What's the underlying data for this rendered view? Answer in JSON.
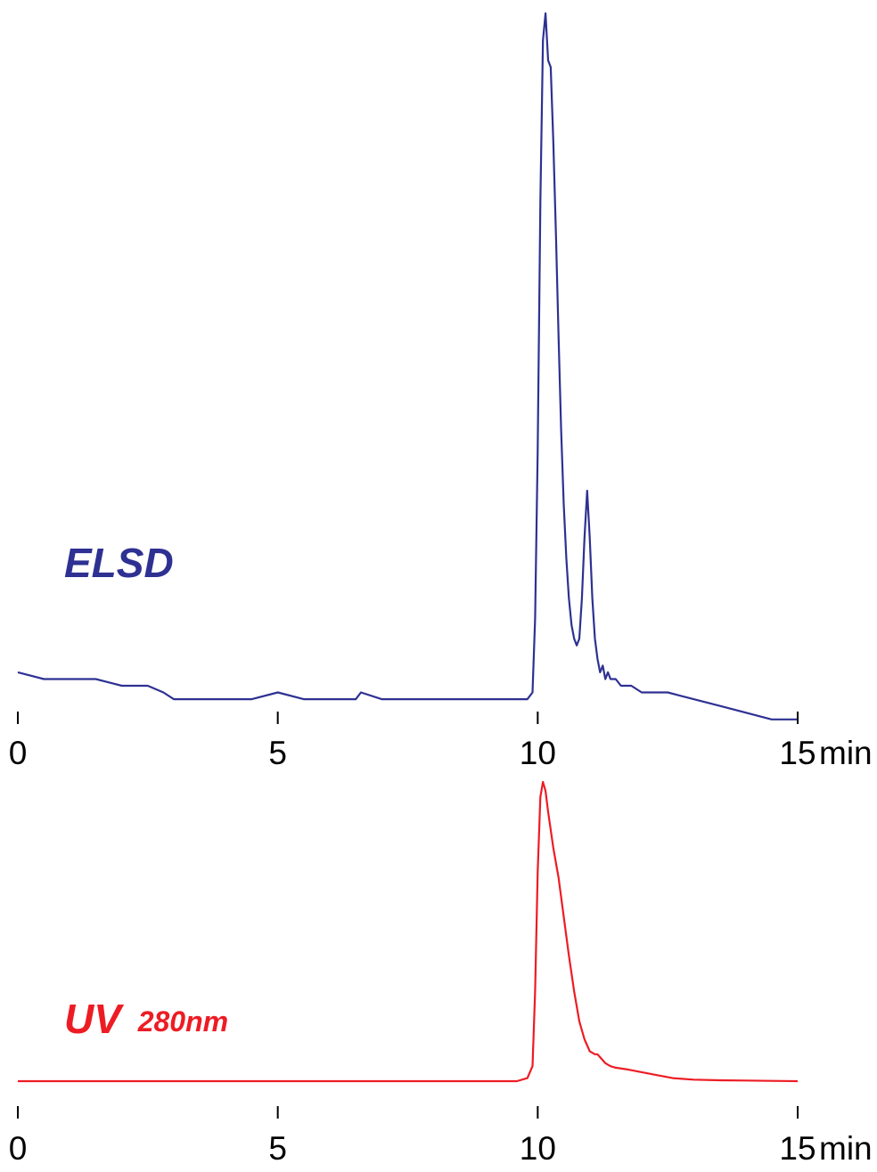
{
  "chart_data": [
    {
      "type": "line",
      "detector_label": "ELSD",
      "color": "#2e3192",
      "x_unit": "min",
      "xlim": [
        0,
        15
      ],
      "x_ticks": [
        "0",
        "5",
        "10",
        "15"
      ],
      "grid": false,
      "series": [
        {
          "x": [
            0,
            0.5,
            1,
            1.5,
            2,
            2.5,
            2.8,
            3,
            3.5,
            4,
            4.5,
            5,
            5.5,
            6,
            6.5,
            6.6,
            7,
            7.5,
            8,
            8.5,
            9,
            9.5,
            9.8,
            9.9,
            9.95,
            10.0,
            10.05,
            10.1,
            10.15,
            10.2,
            10.25,
            10.3,
            10.35,
            10.4,
            10.45,
            10.5,
            10.55,
            10.6,
            10.65,
            10.7,
            10.75,
            10.8,
            10.85,
            10.9,
            10.95,
            11.0,
            11.05,
            11.1,
            11.15,
            11.2,
            11.25,
            11.3,
            11.35,
            11.4,
            11.5,
            11.6,
            11.8,
            12,
            12.5,
            13,
            13.5,
            14,
            14.5,
            15
          ],
          "y": [
            0.02,
            0.01,
            0.01,
            0.01,
            0.0,
            0.0,
            -0.01,
            -0.02,
            -0.02,
            -0.02,
            -0.02,
            -0.01,
            -0.02,
            -0.02,
            -0.02,
            -0.01,
            -0.02,
            -0.02,
            -0.02,
            -0.02,
            -0.02,
            -0.02,
            -0.02,
            -0.01,
            0.1,
            0.35,
            0.72,
            0.96,
            1.0,
            0.93,
            0.92,
            0.81,
            0.67,
            0.52,
            0.38,
            0.27,
            0.19,
            0.13,
            0.09,
            0.07,
            0.06,
            0.07,
            0.13,
            0.22,
            0.29,
            0.22,
            0.13,
            0.07,
            0.04,
            0.02,
            0.03,
            0.01,
            0.02,
            0.01,
            0.01,
            0.0,
            0.0,
            -0.01,
            -0.01,
            -0.02,
            -0.03,
            -0.04,
            -0.05,
            -0.05
          ]
        }
      ]
    },
    {
      "type": "line",
      "detector_label": "UV",
      "detector_sublabel": "280nm",
      "color": "#ed1c24",
      "x_unit": "min",
      "xlim": [
        0,
        15
      ],
      "x_ticks": [
        "0",
        "5",
        "10",
        "15"
      ],
      "grid": false,
      "series": [
        {
          "x": [
            0,
            1,
            2,
            3,
            4,
            5,
            6,
            7,
            8,
            9,
            9.6,
            9.8,
            9.9,
            9.95,
            10.0,
            10.05,
            10.1,
            10.15,
            10.2,
            10.3,
            10.4,
            10.5,
            10.6,
            10.7,
            10.8,
            10.9,
            11.0,
            11.1,
            11.15,
            11.2,
            11.25,
            11.3,
            11.4,
            11.5,
            11.7,
            12,
            12.3,
            12.6,
            13,
            13.5,
            14,
            14.5,
            15
          ],
          "y": [
            0.0,
            0.0,
            0.0,
            0.0,
            0.0,
            0.0,
            0.0,
            0.0,
            0.0,
            0.0,
            0.0,
            0.01,
            0.05,
            0.3,
            0.7,
            0.95,
            1.0,
            0.97,
            0.9,
            0.78,
            0.68,
            0.55,
            0.42,
            0.3,
            0.2,
            0.14,
            0.1,
            0.09,
            0.09,
            0.08,
            0.07,
            0.06,
            0.05,
            0.045,
            0.04,
            0.03,
            0.02,
            0.01,
            0.005,
            0.003,
            0.002,
            0.001,
            0.0
          ]
        }
      ]
    }
  ]
}
